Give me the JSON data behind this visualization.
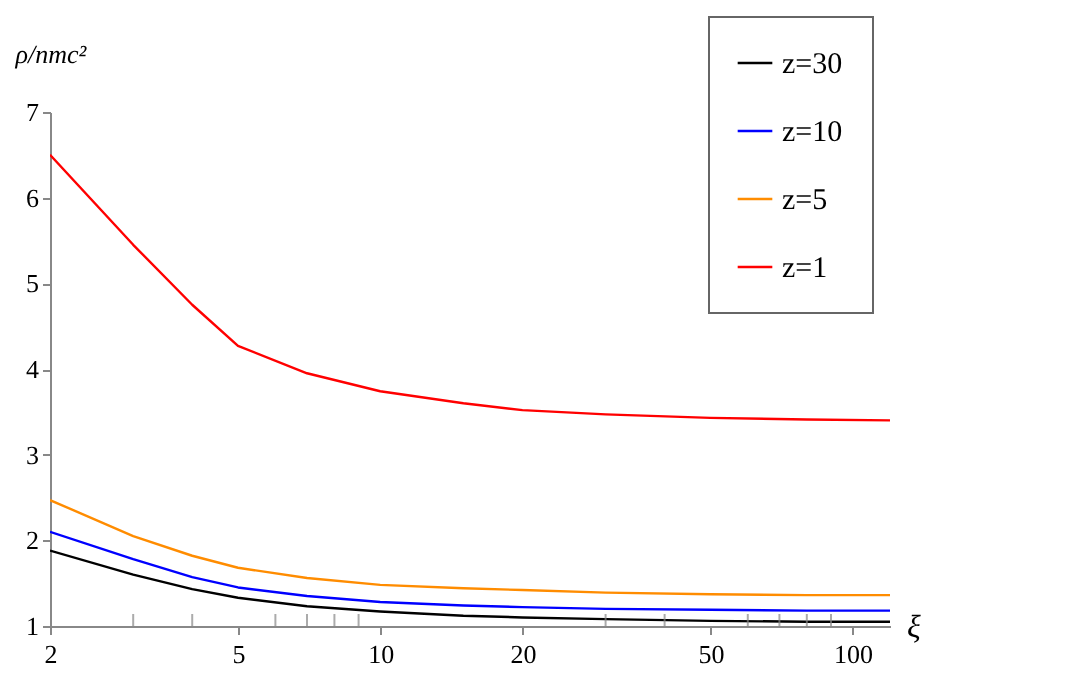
{
  "chart_data": {
    "type": "line",
    "xlabel": "ξ",
    "ylabel": "ρ/nmc²",
    "log": "x",
    "x": [
      2,
      3,
      4,
      5,
      7,
      10,
      15,
      20,
      30,
      50,
      80,
      120
    ],
    "series": [
      {
        "name": "z=30",
        "color": "#000000",
        "values": [
          1.88,
          1.6,
          1.43,
          1.33,
          1.23,
          1.17,
          1.12,
          1.1,
          1.08,
          1.06,
          1.05,
          1.05
        ]
      },
      {
        "name": "z=10",
        "color": "#0000ff",
        "values": [
          2.1,
          1.78,
          1.57,
          1.45,
          1.35,
          1.28,
          1.24,
          1.22,
          1.2,
          1.19,
          1.18,
          1.18
        ]
      },
      {
        "name": "z=5",
        "color": "#ff8c00",
        "values": [
          2.47,
          2.05,
          1.82,
          1.68,
          1.56,
          1.48,
          1.44,
          1.42,
          1.39,
          1.37,
          1.36,
          1.36
        ]
      },
      {
        "name": "z=1",
        "color": "#ff0000",
        "values": [
          6.5,
          5.45,
          4.75,
          4.27,
          3.95,
          3.74,
          3.6,
          3.52,
          3.47,
          3.43,
          3.41,
          3.4
        ]
      }
    ],
    "xlim": [
      2,
      120
    ],
    "ylim": [
      1,
      7
    ],
    "xticks": [
      2,
      {
        "value": 3,
        "label": null
      },
      {
        "value": 4,
        "label": null
      },
      5,
      {
        "value": 6,
        "label": null
      },
      {
        "value": 7,
        "label": null
      },
      {
        "value": 8,
        "label": null
      },
      {
        "value": 9,
        "label": null
      },
      10,
      20,
      {
        "value": 30,
        "label": null
      },
      {
        "value": 40,
        "label": null
      },
      50,
      {
        "value": 60,
        "label": null
      },
      {
        "value": 70,
        "label": null
      },
      {
        "value": 80,
        "label": null
      },
      {
        "value": 90,
        "label": null
      },
      100
    ],
    "yticks": [
      1,
      2,
      3,
      4,
      5,
      6,
      7
    ],
    "legend": "top right",
    "marker": "none",
    "line_style": "solid",
    "grid": false
  }
}
